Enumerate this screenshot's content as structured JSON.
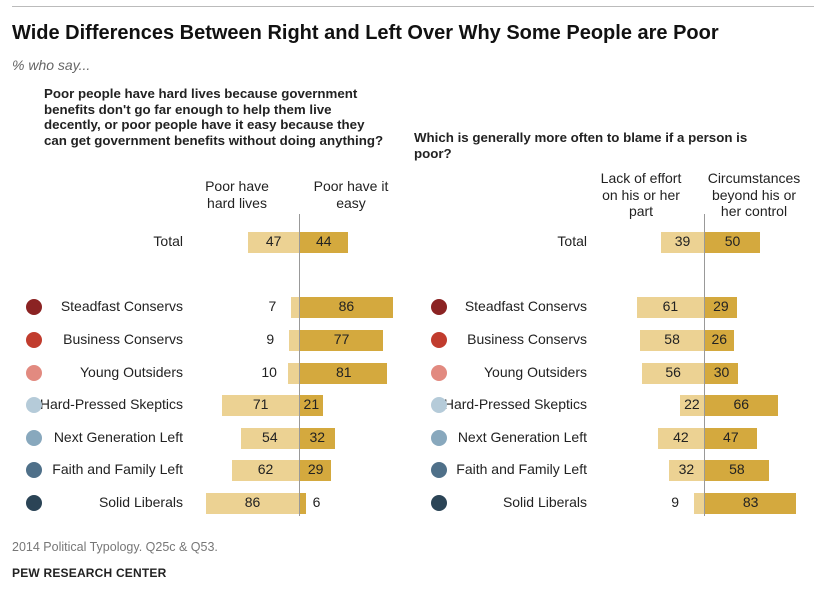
{
  "title": "Wide Differences Between Right and Left Over Why Some People are Poor",
  "subtitle": "% who say...",
  "note": "2014 Political Typology. Q25c & Q53.",
  "source": "PEW RESEARCH CENTER",
  "colors": {
    "light_bar": "#ecd293",
    "dark_bar": "#d4a93e",
    "axis": "#999999"
  },
  "chart_data": [
    {
      "type": "bar",
      "title": "Poor people have hard lives because government benefits don't go far enough to help them live decently, or poor people have it easy because they can get government benefits without doing anything?",
      "series": [
        {
          "name": "Poor have hard lives",
          "values": [
            47,
            7,
            9,
            10,
            71,
            54,
            62,
            86
          ]
        },
        {
          "name": "Poor have it easy",
          "values": [
            44,
            86,
            77,
            81,
            21,
            32,
            29,
            6
          ]
        }
      ]
    },
    {
      "type": "bar",
      "title": "Which is generally more often to blame if a person is poor?",
      "series": [
        {
          "name": "Lack of effort on his or her part",
          "values": [
            39,
            61,
            58,
            56,
            22,
            42,
            32,
            9
          ]
        },
        {
          "name": "Circumstances beyond his or her control",
          "values": [
            50,
            29,
            26,
            30,
            66,
            47,
            58,
            83
          ]
        }
      ]
    }
  ],
  "categories": [
    {
      "label": "Total",
      "color": null
    },
    {
      "label": "Steadfast Conservs",
      "color": "#8b2323"
    },
    {
      "label": "Business Conservs",
      "color": "#c13c2e"
    },
    {
      "label": "Young Outsiders",
      "color": "#e28a80"
    },
    {
      "label": "Hard-Pressed Skeptics",
      "color": "#b5cbd9"
    },
    {
      "label": "Next Generation Left",
      "color": "#88a8bd"
    },
    {
      "label": "Faith and Family Left",
      "color": "#4f7089"
    },
    {
      "label": "Solid Liberals",
      "color": "#2b4456"
    }
  ],
  "headers": {
    "left_neg": "Poor have hard lives",
    "left_pos": "Poor have it easy",
    "right_neg": "Lack of effort on his or her part",
    "right_pos": "Circumstances beyond his or her control"
  }
}
